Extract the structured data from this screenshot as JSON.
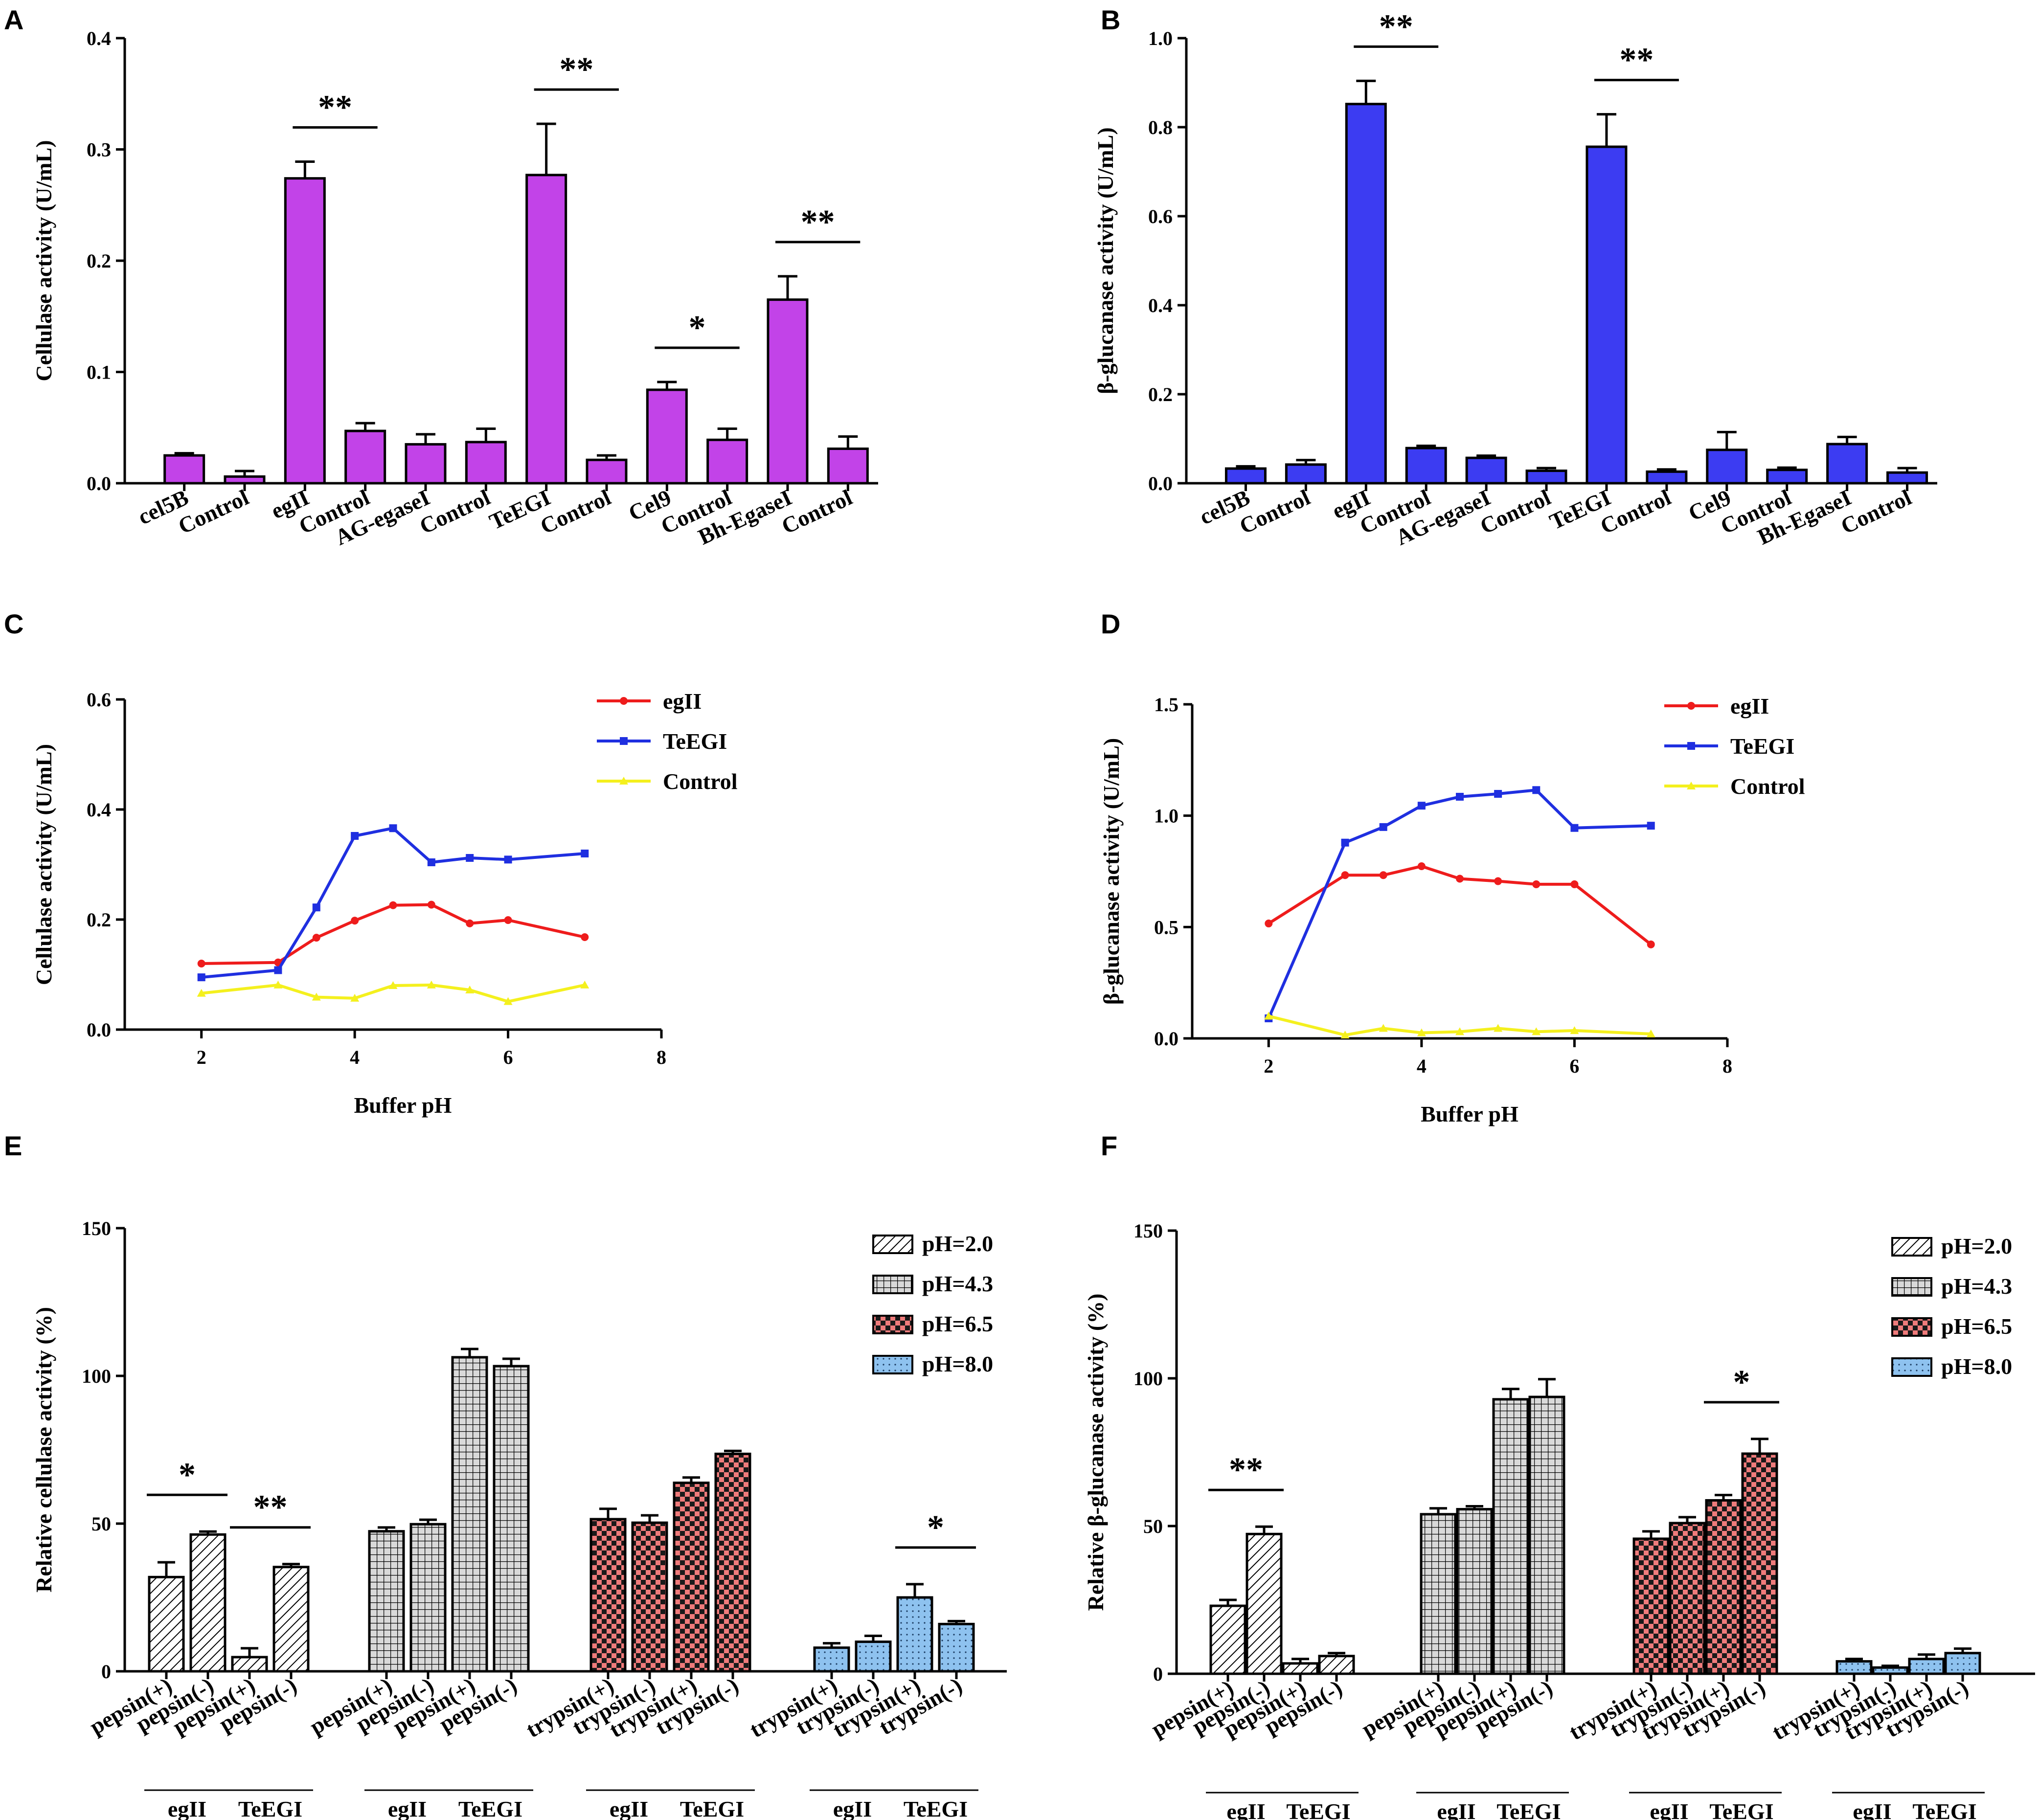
{
  "colors": {
    "magenta": "#c243e8",
    "blue": "#3c3cf2",
    "red": "#ee1c1c",
    "line_blue": "#1f2fe0",
    "yellow": "#f4f01e",
    "grey": "#d9d9d9",
    "pink": "#ef7b7b",
    "lightblue": "#8ec2ef"
  },
  "chart_data": [
    {
      "id": "A",
      "panel_label": "A",
      "type": "bar",
      "ylabel": "Cellulase activity (U/mL)",
      "ylim": [
        0,
        0.4
      ],
      "yticks": [
        "0.0",
        "0.1",
        "0.2",
        "0.3",
        "0.4"
      ],
      "yticks_values": [
        0,
        0.1,
        0.2,
        0.3,
        0.4
      ],
      "categories": [
        "cel5B",
        "Control",
        "egII",
        "Control",
        "AG-egaseI",
        "Control",
        "TeEGI",
        "Control",
        "Cel9",
        "Control",
        "Bh-EgaseI",
        "Control"
      ],
      "values": [
        0.025,
        0.006,
        0.274,
        0.047,
        0.035,
        0.037,
        0.277,
        0.021,
        0.084,
        0.039,
        0.165,
        0.031
      ],
      "errors": [
        0.002,
        0.005,
        0.015,
        0.007,
        0.009,
        0.012,
        0.046,
        0.004,
        0.007,
        0.01,
        0.021,
        0.011
      ],
      "significance": [
        {
          "from": 2,
          "to": 3,
          "label": "**"
        },
        {
          "from": 6,
          "to": 7,
          "label": "**"
        },
        {
          "from": 8,
          "to": 9,
          "label": "*"
        },
        {
          "from": 10,
          "to": 11,
          "label": "**"
        }
      ]
    },
    {
      "id": "B",
      "panel_label": "B",
      "type": "bar",
      "ylabel": "β-glucanase activity (U/mL)",
      "ylim": [
        0,
        1.0
      ],
      "yticks": [
        "0.0",
        "0.2",
        "0.4",
        "0.6",
        "0.8",
        "1.0"
      ],
      "yticks_values": [
        0,
        0.2,
        0.4,
        0.6,
        0.8,
        1.0
      ],
      "categories": [
        "cel5B",
        "Control",
        "egII",
        "Control",
        "AG-egaseI",
        "Control",
        "TeEGI",
        "Control",
        "Cel9",
        "Control",
        "Bh-EgaseI",
        "Control"
      ],
      "values": [
        0.033,
        0.042,
        0.852,
        0.079,
        0.057,
        0.028,
        0.756,
        0.026,
        0.075,
        0.03,
        0.088,
        0.024
      ],
      "errors": [
        0.005,
        0.01,
        0.052,
        0.005,
        0.005,
        0.006,
        0.073,
        0.005,
        0.04,
        0.005,
        0.016,
        0.01
      ],
      "significance": [
        {
          "from": 2,
          "to": 3,
          "label": "**"
        },
        {
          "from": 6,
          "to": 7,
          "label": "**"
        }
      ]
    },
    {
      "id": "C",
      "panel_label": "C",
      "type": "line",
      "xlabel": "Buffer pH",
      "ylabel": "Cellulase activity (U/mL)",
      "xlim": [
        1,
        8
      ],
      "xticks": [
        2,
        4,
        6,
        8
      ],
      "ylim": [
        0,
        0.6
      ],
      "yticks": [
        "0.0",
        "0.2",
        "0.4",
        "0.6"
      ],
      "yticks_values": [
        0,
        0.2,
        0.4,
        0.6
      ],
      "series": [
        {
          "name": "egII",
          "color": "red",
          "marker": "circle",
          "x": [
            2,
            3,
            3.5,
            4,
            4.5,
            5,
            5.5,
            6,
            7
          ],
          "y": [
            0.12,
            0.122,
            0.167,
            0.198,
            0.226,
            0.227,
            0.193,
            0.199,
            0.168
          ]
        },
        {
          "name": "TeEGI",
          "color": "line_blue",
          "marker": "square",
          "x": [
            2,
            3,
            3.5,
            4,
            4.5,
            5,
            5.5,
            6,
            7
          ],
          "y": [
            0.095,
            0.108,
            0.222,
            0.352,
            0.366,
            0.304,
            0.312,
            0.309,
            0.32
          ]
        },
        {
          "name": "Control",
          "color": "yellow",
          "marker": "triangle",
          "x": [
            2,
            3,
            3.5,
            4,
            4.5,
            5,
            5.5,
            6,
            7
          ],
          "y": [
            0.066,
            0.081,
            0.059,
            0.057,
            0.08,
            0.081,
            0.072,
            0.051,
            0.081
          ]
        }
      ]
    },
    {
      "id": "D",
      "panel_label": "D",
      "type": "line",
      "xlabel": "Buffer pH",
      "ylabel": "β-glucanase activity (U/mL)",
      "xlim": [
        1,
        8
      ],
      "xticks": [
        2,
        4,
        6,
        8
      ],
      "ylim": [
        0,
        1.5
      ],
      "yticks": [
        "0.0",
        "0.5",
        "1.0",
        "1.5"
      ],
      "yticks_values": [
        0,
        0.5,
        1.0,
        1.5
      ],
      "series": [
        {
          "name": "egII",
          "color": "red",
          "marker": "circle",
          "x": [
            2,
            3,
            3.5,
            4,
            4.5,
            5,
            5.5,
            6,
            7
          ],
          "y": [
            0.516,
            0.733,
            0.733,
            0.773,
            0.717,
            0.706,
            0.692,
            0.692,
            0.422
          ]
        },
        {
          "name": "TeEGI",
          "color": "line_blue",
          "marker": "square",
          "x": [
            2,
            3,
            3.5,
            4,
            4.5,
            5,
            5.5,
            6,
            7
          ],
          "y": [
            0.09,
            0.879,
            0.949,
            1.045,
            1.085,
            1.098,
            1.115,
            0.945,
            0.955
          ]
        },
        {
          "name": "Control",
          "color": "yellow",
          "marker": "triangle",
          "x": [
            2,
            3,
            3.5,
            4,
            4.5,
            5,
            5.5,
            6,
            7
          ],
          "y": [
            0.1,
            0.015,
            0.045,
            0.025,
            0.03,
            0.045,
            0.03,
            0.035,
            0.02
          ]
        }
      ]
    },
    {
      "id": "E",
      "panel_label": "E",
      "type": "bar",
      "ylabel": "Relative cellulase activity (%)",
      "ylim": [
        0,
        150
      ],
      "yticks": [
        "0",
        "50",
        "100",
        "150"
      ],
      "yticks_values": [
        0,
        50,
        100,
        150
      ],
      "legend": [
        "pH=2.0",
        "pH=4.3",
        "pH=6.5",
        "pH=8.0"
      ],
      "group_names": [
        "egII",
        "TeEGI"
      ],
      "group_labels": [
        [
          "egII",
          "TeEGI"
        ],
        [
          "egII",
          "TeEGI"
        ],
        [
          "egII",
          "TeEGI"
        ],
        [
          "egII",
          "TeEGI"
        ]
      ],
      "categories": [
        [
          "pepsin(+)",
          "pepsin(-)",
          "pepsin(+)",
          "pepsin(-)"
        ],
        [
          "pepsin(+)",
          "pepsin(-)",
          "pepsin(+)",
          "pepsin(-)"
        ],
        [
          "trypsin(+)",
          "trypsin(-)",
          "trypsin(+)",
          "trypsin(-)"
        ],
        [
          "trypsin(+)",
          "trypsin(-)",
          "trypsin(+)",
          "trypsin(-)"
        ]
      ],
      "series": [
        {
          "name": "pH=2.0",
          "values": [
            31.9,
            46.3,
            4.8,
            35.3
          ],
          "errors": [
            5.0,
            1.0,
            3.0,
            1.0
          ]
        },
        {
          "name": "pH=4.3",
          "values": [
            47.4,
            49.8,
            106.3,
            103.3
          ],
          "errors": [
            1.3,
            1.5,
            2.8,
            2.5
          ]
        },
        {
          "name": "pH=6.5",
          "values": [
            51.5,
            50.3,
            63.8,
            73.6
          ],
          "errors": [
            3.5,
            2.5,
            1.8,
            1.0
          ]
        },
        {
          "name": "pH=8.0",
          "values": [
            8.0,
            10.0,
            25.0,
            16.0
          ],
          "errors": [
            1.5,
            2.0,
            4.5,
            1.0
          ]
        }
      ],
      "significance": [
        {
          "series": 0,
          "from": 0,
          "to": 1,
          "label": "*"
        },
        {
          "series": 0,
          "from": 2,
          "to": 3,
          "label": "**"
        },
        {
          "series": 3,
          "from": 2,
          "to": 3,
          "label": "*"
        }
      ]
    },
    {
      "id": "F",
      "panel_label": "F",
      "type": "bar",
      "ylabel": "Relative β-glucanase activity (%)",
      "ylim": [
        0,
        150
      ],
      "yticks": [
        "0",
        "50",
        "100",
        "150"
      ],
      "yticks_values": [
        0,
        50,
        100,
        150
      ],
      "legend": [
        "pH=2.0",
        "pH=4.3",
        "pH=6.5",
        "pH=8.0"
      ],
      "group_names": [
        "egII",
        "TeEGI"
      ],
      "group_labels": [
        [
          "egII",
          "TeEGI"
        ],
        [
          "egII",
          "TeEGI"
        ],
        [
          "egII",
          "TeEGI"
        ],
        [
          "egII",
          "TeEGI"
        ]
      ],
      "categories": [
        [
          "pepsin(+)",
          "pepsin(-)",
          "pepsin(+)",
          "pepsin(-)"
        ],
        [
          "pepsin(+)",
          "pepsin(-)",
          "pepsin(+)",
          "pepsin(-)"
        ],
        [
          "trypsin(+)",
          "trypsin(-)",
          "trypsin(+)",
          "trypsin(-)"
        ],
        [
          "trypsin(+)",
          "trypsin(-)",
          "trypsin(+)",
          "trypsin(-)"
        ]
      ],
      "series": [
        {
          "name": "pH=2.0",
          "values": [
            23.0,
            47.3,
            3.5,
            6.0
          ],
          "errors": [
            2.0,
            2.5,
            1.5,
            1.0
          ]
        },
        {
          "name": "pH=4.3",
          "values": [
            54.0,
            55.7,
            92.9,
            93.7
          ],
          "errors": [
            2.0,
            1.0,
            3.5,
            6.0
          ]
        },
        {
          "name": "pH=6.5",
          "values": [
            45.7,
            51.0,
            58.7,
            74.5
          ],
          "errors": [
            2.5,
            2.0,
            1.8,
            5.0
          ]
        },
        {
          "name": "pH=8.0",
          "values": [
            4.2,
            2.1,
            5.0,
            7.0
          ],
          "errors": [
            0.8,
            0.6,
            1.5,
            1.5
          ]
        }
      ],
      "significance": [
        {
          "series": 0,
          "from": 0,
          "to": 1,
          "label": "**"
        },
        {
          "series": 2,
          "from": 2,
          "to": 3,
          "label": "*"
        }
      ]
    }
  ]
}
